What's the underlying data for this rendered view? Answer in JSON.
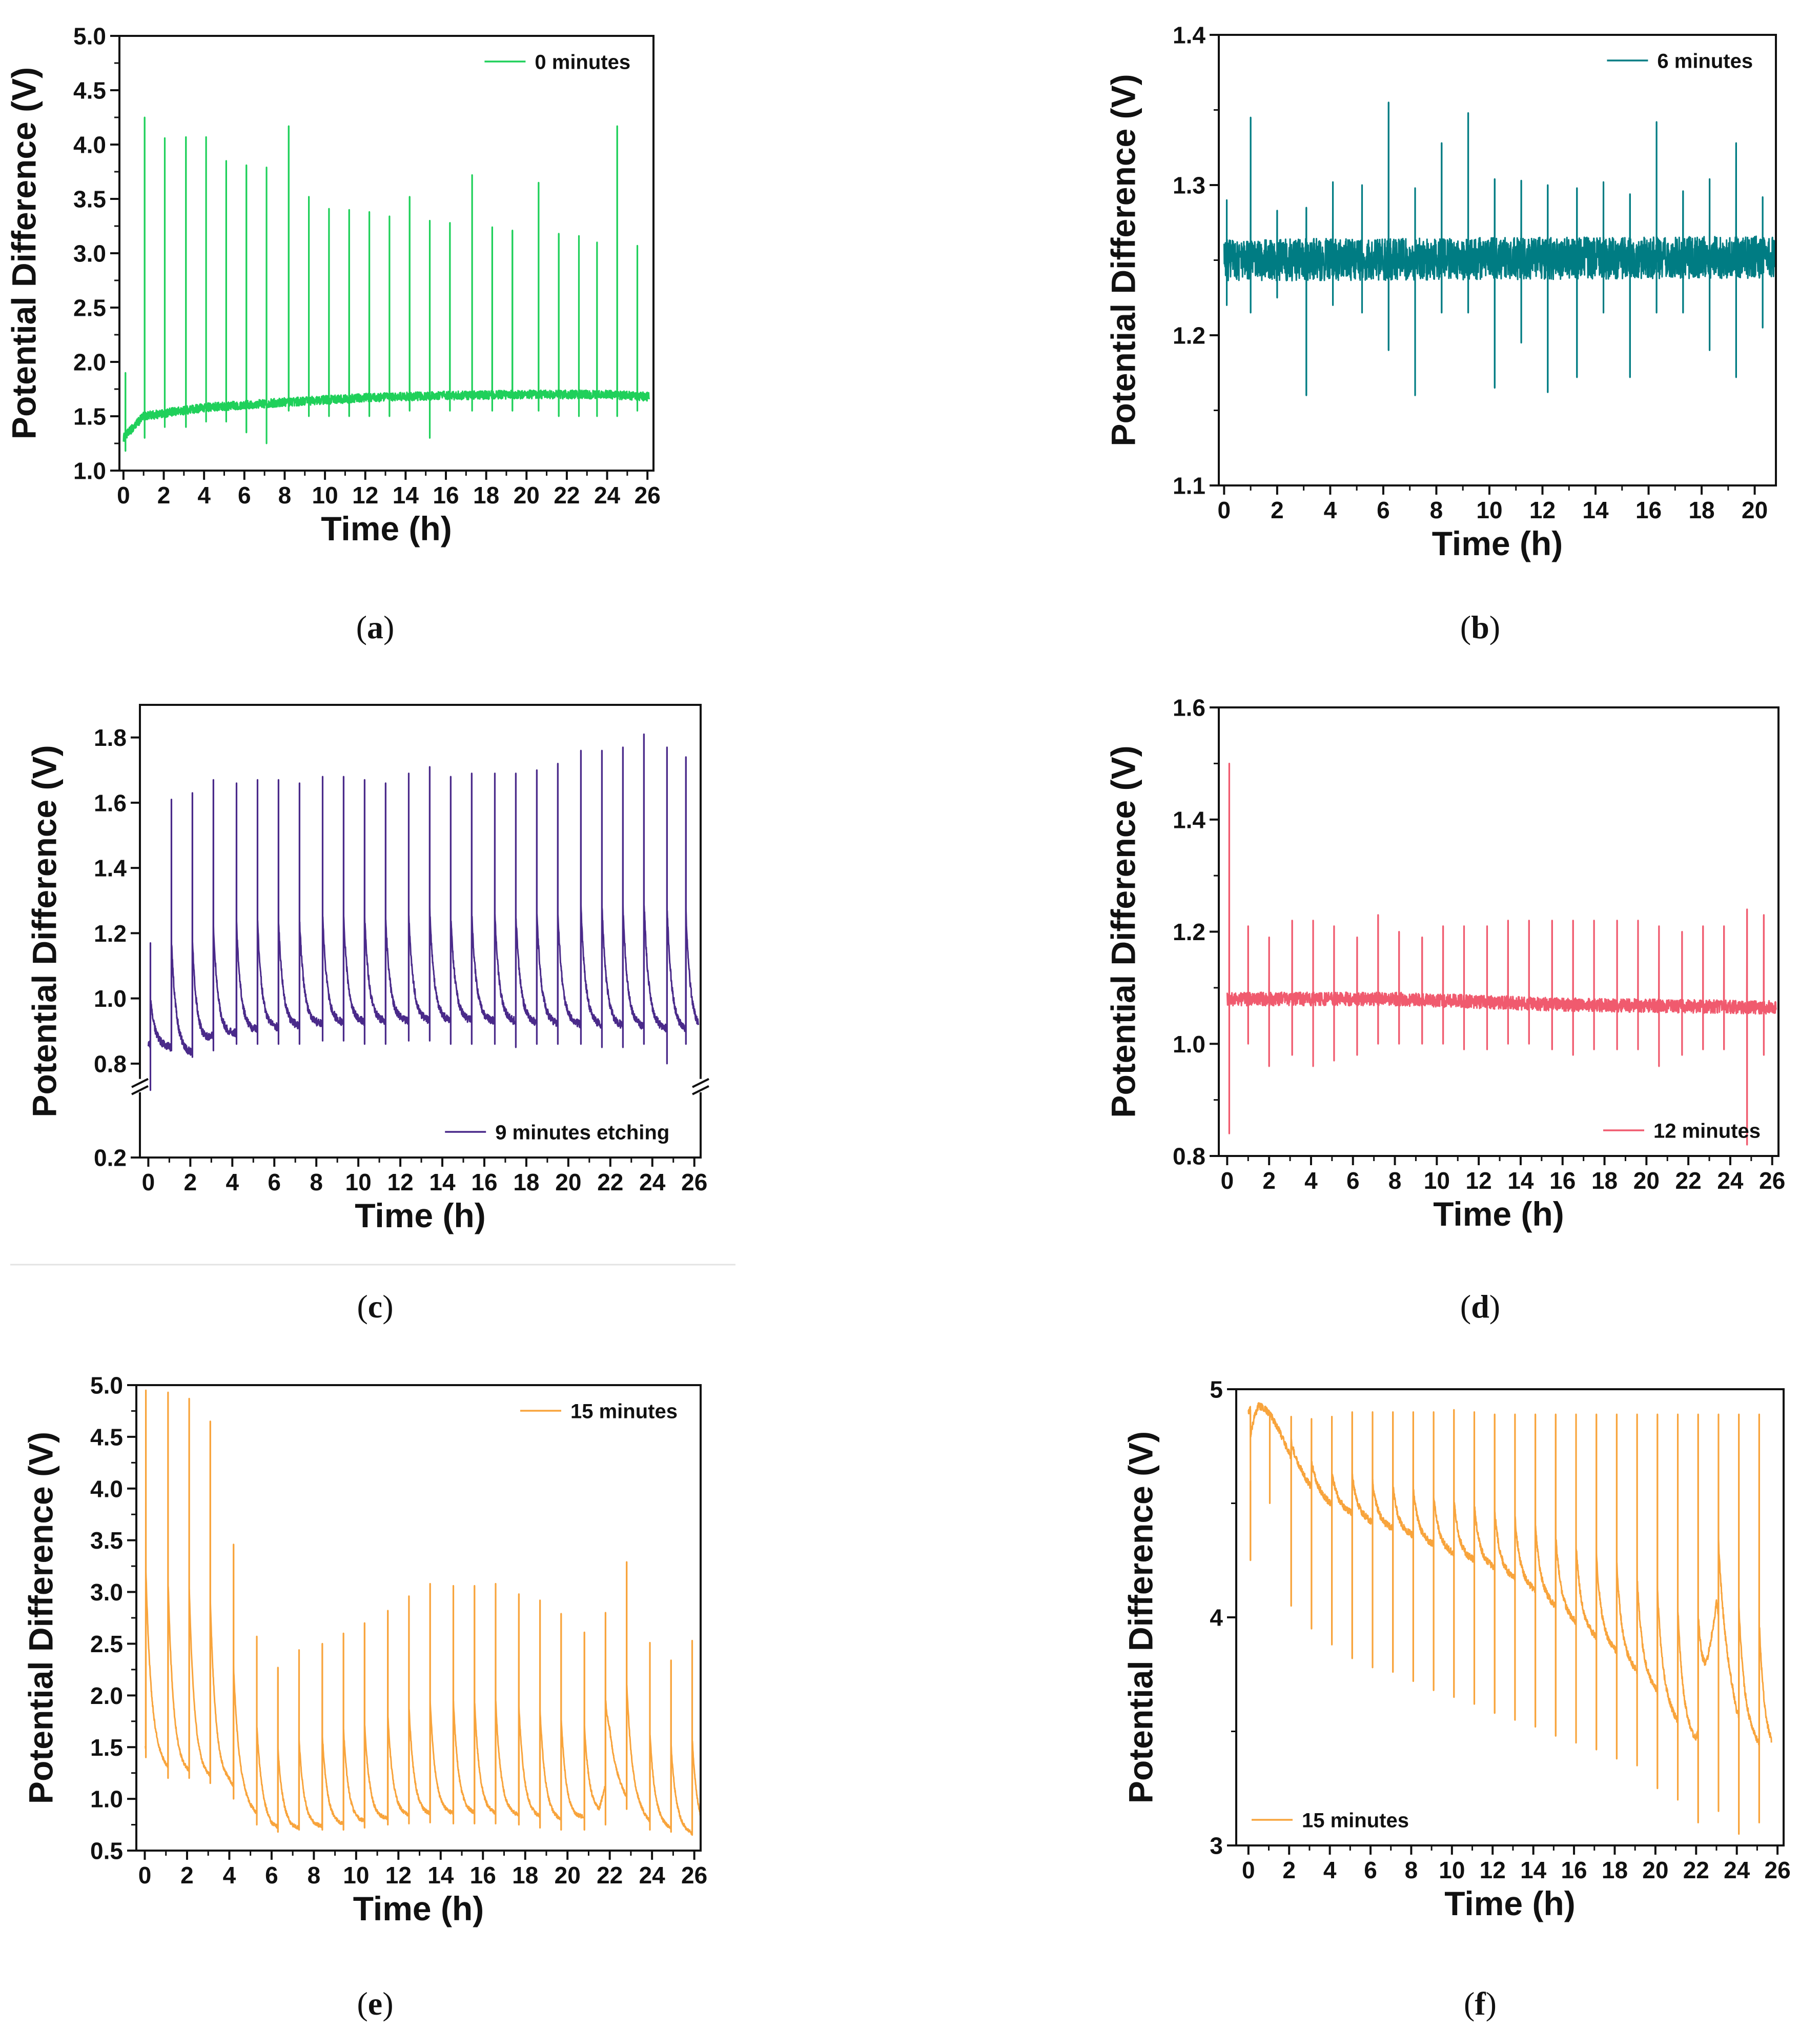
{
  "figure": {
    "separator": true
  },
  "chart_data": [
    {
      "id": "a",
      "type": "line",
      "caption_letter": "a",
      "color": "#1fd05a",
      "xlabel": "Time (h)",
      "ylabel": "Potential Difference (V)",
      "xlim": [
        -0.2,
        26.3
      ],
      "ylim": [
        1.0,
        5.0
      ],
      "xticks": [
        0,
        2,
        4,
        6,
        8,
        10,
        12,
        14,
        16,
        18,
        20,
        22,
        24,
        26
      ],
      "xtick_labels": [
        "0",
        "2",
        "4",
        "6",
        "8",
        "10",
        "12",
        "14",
        "16",
        "18",
        "20",
        "22",
        "24",
        "26"
      ],
      "yticks": [
        1.0,
        1.5,
        2.0,
        2.5,
        3.0,
        3.5,
        4.0,
        4.5,
        5.0
      ],
      "ytick_labels": [
        "1.0",
        "1.5",
        "2.0",
        "2.5",
        "3.0",
        "3.5",
        "4.0",
        "4.5",
        "5.0"
      ],
      "legend": {
        "label": "0 minutes",
        "position": "top-right"
      },
      "series": [
        {
          "name": "0 minutes",
          "baseline_x": [
            0,
            1,
            4,
            8,
            12,
            16,
            20,
            24,
            26
          ],
          "baseline_y": [
            1.3,
            1.5,
            1.58,
            1.63,
            1.67,
            1.69,
            1.7,
            1.7,
            1.68
          ],
          "noise": 0.04,
          "events_x": [
            0.1,
            1.05,
            2.05,
            3.1,
            4.1,
            5.1,
            6.1,
            7.1,
            8.2,
            9.2,
            10.2,
            11.2,
            12.2,
            13.2,
            14.2,
            15.2,
            16.2,
            17.3,
            18.3,
            19.3,
            20.6,
            21.6,
            22.6,
            23.5,
            24.5,
            25.5
          ],
          "events_up": [
            1.9,
            4.25,
            4.06,
            4.07,
            4.07,
            3.85,
            3.81,
            3.79,
            4.17,
            3.52,
            3.41,
            3.4,
            3.38,
            3.34,
            3.52,
            3.3,
            3.28,
            3.72,
            3.24,
            3.21,
            3.65,
            3.18,
            3.16,
            3.1,
            4.17,
            3.07
          ],
          "events_down": [
            1.18,
            1.3,
            1.4,
            1.4,
            1.45,
            1.45,
            1.35,
            1.25,
            1.55,
            1.5,
            1.5,
            1.5,
            1.5,
            1.5,
            1.55,
            1.3,
            1.55,
            1.55,
            1.55,
            1.55,
            1.55,
            1.5,
            1.5,
            1.5,
            1.5,
            1.55
          ],
          "relax": 0,
          "relax_tau": 0.2
        }
      ]
    },
    {
      "id": "b",
      "type": "line",
      "caption_letter": "b",
      "color": "#007c83",
      "xlabel": "Time (h)",
      "ylabel": "Potential Difference (V)",
      "xlim": [
        -0.2,
        20.8
      ],
      "ylim": [
        1.1,
        1.4
      ],
      "xticks": [
        0,
        2,
        4,
        6,
        8,
        10,
        12,
        14,
        16,
        18,
        20
      ],
      "xtick_labels": [
        "0",
        "2",
        "4",
        "6",
        "8",
        "10",
        "12",
        "14",
        "16",
        "18",
        "20"
      ],
      "yticks": [
        1.1,
        1.2,
        1.3,
        1.4
      ],
      "ytick_labels": [
        "1.1",
        "1.2",
        "1.3",
        "1.4"
      ],
      "legend": {
        "label": "6 minutes",
        "position": "top-right"
      },
      "series": [
        {
          "name": "6 minutes",
          "baseline_x": [
            0,
            20.8
          ],
          "baseline_y": [
            1.25,
            1.252
          ],
          "noise": 0.014,
          "events_x": [
            0.1,
            1.0,
            2.0,
            3.1,
            4.1,
            5.2,
            6.2,
            7.2,
            8.2,
            9.2,
            10.2,
            11.2,
            12.2,
            13.3,
            14.3,
            15.3,
            16.3,
            17.3,
            18.3,
            19.3,
            20.3
          ],
          "events_up": [
            1.29,
            1.345,
            1.283,
            1.285,
            1.302,
            1.3,
            1.355,
            1.298,
            1.328,
            1.348,
            1.304,
            1.303,
            1.3,
            1.298,
            1.302,
            1.294,
            1.342,
            1.296,
            1.304,
            1.328,
            1.292
          ],
          "events_down": [
            1.22,
            1.215,
            1.225,
            1.16,
            1.22,
            1.215,
            1.19,
            1.16,
            1.215,
            1.215,
            1.165,
            1.195,
            1.162,
            1.172,
            1.215,
            1.172,
            1.215,
            1.215,
            1.19,
            1.172,
            1.205
          ],
          "relax": 0,
          "relax_tau": 0.1
        }
      ]
    },
    {
      "id": "c",
      "type": "line",
      "caption_letter": "c",
      "color": "#4a2a8a",
      "xlabel": "Time (h)",
      "ylabel": "Potential Difference (V)",
      "xlim": [
        -0.4,
        26.3
      ],
      "ylim": [
        0.2,
        1.9
      ],
      "y_break": {
        "lower": [
          0.2,
          0.3
        ],
        "upper": [
          0.75,
          1.9
        ],
        "lower_fraction": 0.16
      },
      "xticks": [
        0,
        2,
        4,
        6,
        8,
        10,
        12,
        14,
        16,
        18,
        20,
        22,
        24,
        26
      ],
      "xtick_labels": [
        "0",
        "2",
        "4",
        "6",
        "8",
        "10",
        "12",
        "14",
        "16",
        "18",
        "20",
        "22",
        "24",
        "26"
      ],
      "yticks": [
        0.2,
        0.8,
        1.0,
        1.2,
        1.4,
        1.6,
        1.8
      ],
      "ytick_labels": [
        "0.2",
        "0.8",
        "1.0",
        "1.2",
        "1.4",
        "1.6",
        "1.8"
      ],
      "legend": {
        "label": "9 minutes etching",
        "position": "bottom-right"
      },
      "series": [
        {
          "name": "9 minutes etching",
          "baseline_x": [
            0,
            1,
            2,
            3,
            5,
            8,
            12,
            16,
            20,
            24,
            26
          ],
          "baseline_y": [
            0.86,
            0.85,
            0.83,
            0.88,
            0.9,
            0.92,
            0.93,
            0.93,
            0.92,
            0.91,
            0.9
          ],
          "noise": 0.012,
          "events_x": [
            0.1,
            1.1,
            2.1,
            3.1,
            4.2,
            5.2,
            6.2,
            7.2,
            8.3,
            9.3,
            10.3,
            11.3,
            12.4,
            13.4,
            14.4,
            15.4,
            16.5,
            17.5,
            18.5,
            19.5,
            20.6,
            21.6,
            22.6,
            23.6,
            24.7,
            25.6
          ],
          "events_up": [
            1.17,
            1.61,
            1.63,
            1.67,
            1.66,
            1.67,
            1.67,
            1.66,
            1.68,
            1.68,
            1.67,
            1.66,
            1.69,
            1.71,
            1.68,
            1.69,
            1.69,
            1.69,
            1.7,
            1.72,
            1.76,
            1.76,
            1.77,
            1.81,
            1.77,
            1.74
          ],
          "events_down": [
            0.3,
            0.84,
            0.82,
            0.84,
            0.86,
            0.86,
            0.86,
            0.86,
            0.87,
            0.87,
            0.86,
            0.86,
            0.87,
            0.87,
            0.86,
            0.86,
            0.86,
            0.85,
            0.86,
            0.86,
            0.86,
            0.85,
            0.85,
            0.86,
            0.8,
            0.86
          ],
          "relax": 0.35,
          "relax_tau": 0.22
        }
      ]
    },
    {
      "id": "d",
      "type": "line",
      "caption_letter": "d",
      "color": "#f05a6e",
      "xlabel": "Time (h)",
      "ylabel": "Potential Difference (V)",
      "xlim": [
        -0.4,
        26.3
      ],
      "ylim": [
        0.8,
        1.6
      ],
      "xticks": [
        0,
        2,
        4,
        6,
        8,
        10,
        12,
        14,
        16,
        18,
        20,
        22,
        24,
        26
      ],
      "xtick_labels": [
        "0",
        "2",
        "4",
        "6",
        "8",
        "10",
        "12",
        "14",
        "16",
        "18",
        "20",
        "22",
        "24",
        "26"
      ],
      "yticks": [
        0.8,
        1.0,
        1.2,
        1.4,
        1.6
      ],
      "ytick_labels": [
        "0.8",
        "1.0",
        "1.2",
        "1.4",
        "1.6"
      ],
      "legend": {
        "label": "12 minutes",
        "position": "bottom-right"
      },
      "series": [
        {
          "name": "12 minutes",
          "baseline_x": [
            0,
            8,
            16,
            26
          ],
          "baseline_y": [
            1.08,
            1.08,
            1.07,
            1.065
          ],
          "noise": 0.012,
          "events_x": [
            0.1,
            1.0,
            2.0,
            3.1,
            4.1,
            5.1,
            6.2,
            7.2,
            8.2,
            9.3,
            10.3,
            11.3,
            12.4,
            13.4,
            14.4,
            15.5,
            16.5,
            17.5,
            18.6,
            19.6,
            20.6,
            21.7,
            22.7,
            23.7,
            24.8,
            25.6
          ],
          "events_up": [
            1.5,
            1.21,
            1.19,
            1.22,
            1.22,
            1.21,
            1.19,
            1.23,
            1.2,
            1.19,
            1.21,
            1.21,
            1.21,
            1.22,
            1.22,
            1.22,
            1.22,
            1.22,
            1.22,
            1.22,
            1.21,
            1.2,
            1.21,
            1.21,
            1.24,
            1.23
          ],
          "events_down": [
            0.84,
            1.0,
            0.96,
            0.98,
            0.96,
            0.97,
            0.98,
            1.0,
            1.0,
            1.0,
            1.0,
            0.99,
            0.99,
            1.0,
            1.0,
            0.99,
            0.98,
            0.99,
            0.99,
            0.99,
            0.96,
            0.98,
            0.99,
            0.99,
            0.82,
            0.98
          ],
          "relax": 0,
          "relax_tau": 0.1
        }
      ]
    },
    {
      "id": "e",
      "type": "line",
      "caption_letter": "e",
      "color": "#f8a43c",
      "xlabel": "Time (h)",
      "ylabel": "Potential Difference (V)",
      "xlim": [
        -0.4,
        26.3
      ],
      "ylim": [
        0.5,
        5.0
      ],
      "xticks": [
        0,
        2,
        4,
        6,
        8,
        10,
        12,
        14,
        16,
        18,
        20,
        22,
        24,
        26
      ],
      "xtick_labels": [
        "0",
        "2",
        "4",
        "6",
        "8",
        "10",
        "12",
        "14",
        "16",
        "18",
        "20",
        "22",
        "24",
        "26"
      ],
      "yticks": [
        0.5,
        1.0,
        1.5,
        2.0,
        2.5,
        3.0,
        3.5,
        4.0,
        4.5,
        5.0
      ],
      "ytick_labels": [
        "0.5",
        "1.0",
        "1.5",
        "2.0",
        "2.5",
        "3.0",
        "3.5",
        "4.0",
        "4.5",
        "5.0"
      ],
      "legend": {
        "label": "15 minutes",
        "position": "top-right"
      },
      "series": [
        {
          "name": "15 minutes",
          "baseline_x": [
            0,
            1,
            2,
            3,
            4,
            5,
            6,
            7,
            8,
            10,
            12,
            14,
            16,
            18,
            20,
            21.5,
            22,
            22.8,
            24,
            25,
            26
          ],
          "baseline_y": [
            1.5,
            1.3,
            1.25,
            1.2,
            1.15,
            0.9,
            0.72,
            0.7,
            0.72,
            0.76,
            0.82,
            0.85,
            0.85,
            0.83,
            0.78,
            0.85,
            1.3,
            1.0,
            0.75,
            0.7,
            0.65
          ],
          "noise": 0.018,
          "events_x": [
            0.05,
            1.1,
            2.1,
            3.1,
            4.2,
            5.3,
            6.3,
            7.3,
            8.4,
            9.4,
            10.4,
            11.5,
            12.5,
            13.5,
            14.6,
            15.6,
            16.6,
            17.7,
            18.7,
            19.7,
            20.8,
            21.8,
            22.8,
            23.9,
            24.9,
            25.9
          ],
          "events_up": [
            4.95,
            4.93,
            4.87,
            4.65,
            3.46,
            2.57,
            2.27,
            2.44,
            2.5,
            2.6,
            2.7,
            2.82,
            2.96,
            3.08,
            3.06,
            3.06,
            3.08,
            2.98,
            2.92,
            2.79,
            2.61,
            2.8,
            3.29,
            2.51,
            2.34,
            2.53
          ],
          "events_down": [
            1.4,
            1.2,
            1.2,
            1.15,
            1.0,
            0.75,
            0.68,
            0.7,
            0.7,
            0.7,
            0.72,
            0.75,
            0.76,
            0.77,
            0.76,
            0.76,
            0.76,
            0.75,
            0.72,
            0.7,
            0.7,
            0.75,
            0.9,
            0.7,
            0.68,
            0.65
          ],
          "relax": 0.4,
          "relax_tau": 0.25
        }
      ]
    },
    {
      "id": "f",
      "type": "line",
      "caption_letter": "f",
      "color": "#f8a43c",
      "xlabel": "Time (h)",
      "ylabel": "Potential Difference (V)",
      "xlim": [
        -0.6,
        26.3
      ],
      "ylim": [
        3.0,
        5.0
      ],
      "xticks": [
        0,
        2,
        4,
        6,
        8,
        10,
        12,
        14,
        16,
        18,
        20,
        22,
        24,
        26
      ],
      "xtick_labels": [
        "0",
        "2",
        "4",
        "6",
        "8",
        "10",
        "12",
        "14",
        "16",
        "18",
        "20",
        "22",
        "24",
        "26"
      ],
      "yticks": [
        3,
        4,
        5
      ],
      "ytick_labels": [
        "3",
        "4",
        "5"
      ],
      "legend": {
        "label": "15 minutes",
        "position": "bottom-left"
      },
      "series": [
        {
          "name": "15 minutes",
          "baseline_x": [
            0,
            0.5,
            1,
            1.5,
            2,
            3,
            4,
            6,
            8,
            10,
            12,
            14,
            16,
            18,
            20,
            21,
            22,
            22.5,
            23,
            23.5,
            24,
            25,
            26
          ],
          "baseline_y": [
            4.9,
            4.95,
            4.9,
            4.82,
            4.72,
            4.58,
            4.5,
            4.42,
            4.36,
            4.28,
            4.22,
            4.12,
            3.98,
            3.85,
            3.68,
            3.55,
            3.45,
            3.7,
            4.05,
            3.8,
            3.58,
            3.45,
            3.4
          ],
          "noise": 0.015,
          "events_x": [
            0.1,
            1.05,
            2.1,
            3.1,
            4.1,
            5.1,
            6.1,
            7.1,
            8.1,
            9.1,
            10.1,
            11.1,
            12.1,
            13.1,
            14.1,
            15.1,
            16.1,
            17.1,
            18.1,
            19.1,
            20.1,
            21.1,
            22.1,
            23.1,
            24.1,
            25.1
          ],
          "events_up": [
            4.6,
            4.9,
            4.88,
            4.87,
            4.88,
            4.9,
            4.9,
            4.9,
            4.9,
            4.9,
            4.91,
            4.9,
            4.89,
            4.89,
            4.89,
            4.89,
            4.89,
            4.89,
            4.89,
            4.89,
            4.89,
            4.89,
            4.89,
            4.89,
            4.89,
            4.89
          ],
          "events_down": [
            4.25,
            4.5,
            4.05,
            3.95,
            3.88,
            3.82,
            3.78,
            3.76,
            3.72,
            3.68,
            3.65,
            3.62,
            3.58,
            3.55,
            3.52,
            3.48,
            3.45,
            3.42,
            3.38,
            3.35,
            3.25,
            3.2,
            3.1,
            3.15,
            3.05,
            3.1
          ],
          "relax": 0.3,
          "relax_tau": 0.25
        }
      ]
    }
  ]
}
